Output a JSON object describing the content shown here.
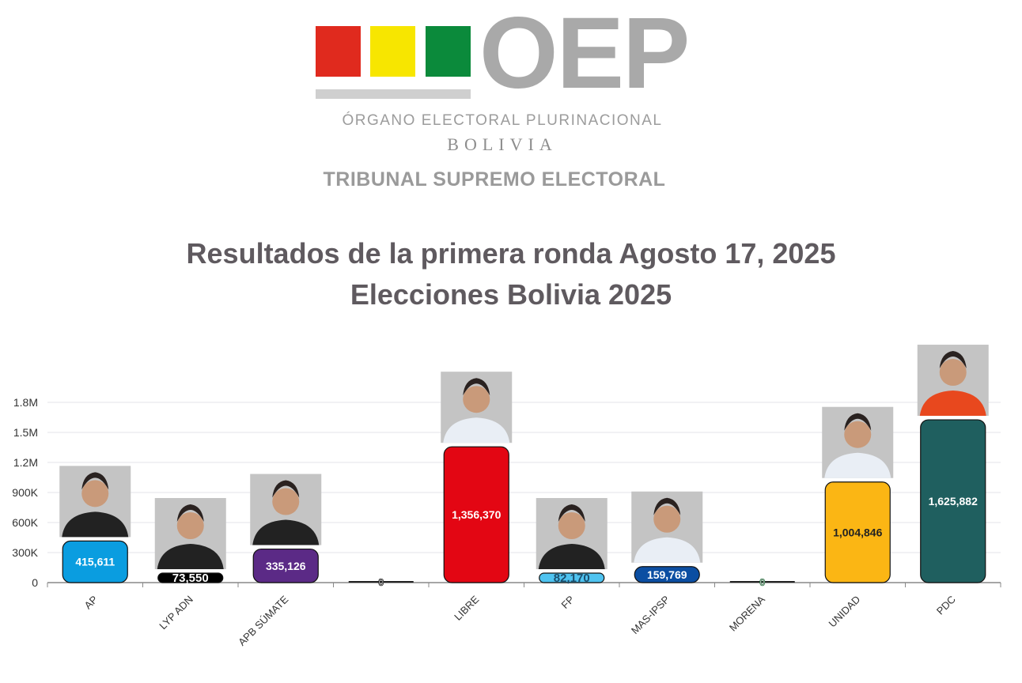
{
  "logo": {
    "text": "OEP",
    "subtitle": "ÓRGANO ELECTORAL PLURINACIONAL",
    "country": "BOLIVIA",
    "tribunal": "TRIBUNAL SUPREMO ELECTORAL",
    "colors": [
      "#e02a1e",
      "#f7e600",
      "#0b8a3b",
      "#a9a9a9"
    ]
  },
  "chart_data": {
    "type": "bar",
    "title": "Resultados de la primera ronda Agosto 17, 2025",
    "subtitle": "Elecciones Bolivia 2025",
    "xlabel": "",
    "ylabel": "",
    "ylim": [
      0,
      1800000
    ],
    "yticks": [
      "0",
      "300K",
      "600K",
      "900K",
      "1.2M",
      "1.5M",
      "1.8M"
    ],
    "grid": true,
    "categories": [
      "AP",
      "LYP ADN",
      "APB SÚMATE",
      "",
      "LIBRE",
      "FP",
      "MAS-IPSP",
      "MORENA",
      "UNIDAD",
      "PDC"
    ],
    "values": [
      415611,
      73550,
      335126,
      0,
      1356370,
      82170,
      159769,
      0,
      1004846,
      1625882
    ],
    "labels": [
      "415,611",
      "73,550",
      "335,126",
      "0",
      "1,356,370",
      "82,170",
      "159,769",
      "0",
      "1,004,846",
      "1,625,882"
    ],
    "colors": [
      "#0a9de0",
      "#000000",
      "#5b2a86",
      "#000000",
      "#e30613",
      "#4fc3f0",
      "#0b4ea2",
      "#1a7a3a",
      "#fbb614",
      "#1f5f5f"
    ],
    "label_colors": [
      "#ffffff",
      "#ffffff",
      "#ffffff",
      "#aaaaaa",
      "#ffffff",
      "#1b4f6e",
      "#ffffff",
      "#aaaaaa",
      "#222222",
      "#ffffff"
    ],
    "candidate_photos": [
      true,
      true,
      true,
      false,
      true,
      true,
      true,
      false,
      true,
      true
    ]
  }
}
